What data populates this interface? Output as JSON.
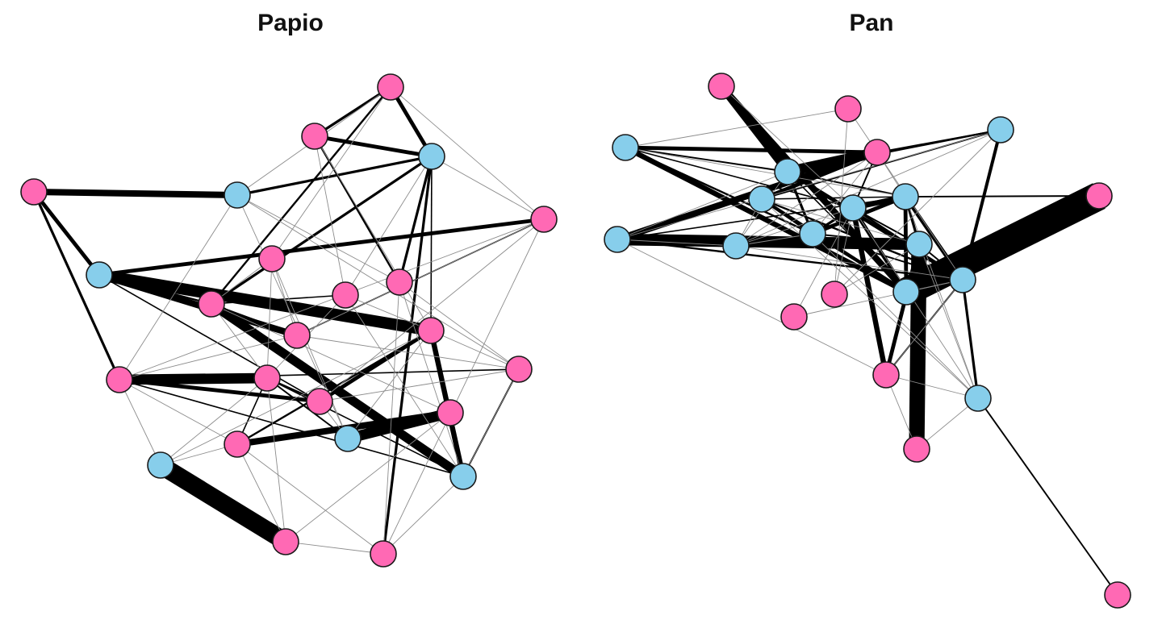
{
  "colors": {
    "female": "#ff69b4",
    "male": "#87ceeb",
    "edge": "#000000",
    "node_stroke": "#1a1a1a",
    "weak_edge": "#8c8c8c"
  },
  "networks": [
    {
      "title": "Papio",
      "nodes": [
        {
          "id": "a",
          "sex": "female"
        },
        {
          "id": "b",
          "sex": "female"
        },
        {
          "id": "c",
          "sex": "male"
        },
        {
          "id": "d",
          "sex": "female"
        },
        {
          "id": "e",
          "sex": "male"
        },
        {
          "id": "f",
          "sex": "female"
        },
        {
          "id": "g",
          "sex": "male"
        },
        {
          "id": "h",
          "sex": "female"
        },
        {
          "id": "i",
          "sex": "female"
        },
        {
          "id": "j",
          "sex": "female"
        },
        {
          "id": "k",
          "sex": "female"
        },
        {
          "id": "l",
          "sex": "female"
        },
        {
          "id": "m",
          "sex": "female"
        },
        {
          "id": "n",
          "sex": "female"
        },
        {
          "id": "o",
          "sex": "female"
        },
        {
          "id": "p",
          "sex": "female"
        },
        {
          "id": "q",
          "sex": "female"
        },
        {
          "id": "r",
          "sex": "female"
        },
        {
          "id": "s",
          "sex": "female"
        },
        {
          "id": "t",
          "sex": "male"
        },
        {
          "id": "u",
          "sex": "male"
        },
        {
          "id": "v",
          "sex": "male"
        },
        {
          "id": "w",
          "sex": "female"
        },
        {
          "id": "x",
          "sex": "female"
        }
      ],
      "edges": [
        [
          "v",
          "w",
          14
        ],
        [
          "g",
          "m",
          9
        ],
        [
          "t",
          "r",
          8
        ],
        [
          "o",
          "n",
          8
        ],
        [
          "k",
          "u",
          7
        ],
        [
          "d",
          "e",
          5
        ],
        [
          "g",
          "l",
          5
        ],
        [
          "r",
          "s",
          5
        ],
        [
          "m",
          "u",
          4
        ],
        [
          "b",
          "c",
          3
        ],
        [
          "g",
          "f",
          3
        ],
        [
          "n",
          "q",
          3
        ],
        [
          "a",
          "c",
          3
        ],
        [
          "m",
          "q",
          3
        ],
        [
          "d",
          "g",
          3
        ],
        [
          "c",
          "k",
          2
        ],
        [
          "a",
          "b",
          2
        ],
        [
          "c",
          "e",
          2
        ],
        [
          "c",
          "i",
          2
        ],
        [
          "d",
          "n",
          2
        ],
        [
          "c",
          "x",
          2
        ],
        [
          "b",
          "i",
          1.5
        ],
        [
          "a",
          "k",
          1.5
        ],
        [
          "o",
          "q",
          1.5
        ],
        [
          "g",
          "k",
          1.5
        ],
        [
          "m",
          "s",
          1.5
        ],
        [
          "m",
          "r",
          1.2
        ],
        [
          "m",
          "u",
          1.2
        ],
        [
          "o",
          "t",
          1.2
        ],
        [
          "u",
          "p",
          1.2
        ],
        [
          "c",
          "m",
          1
        ],
        [
          "j",
          "k",
          1
        ],
        [
          "l",
          "k",
          1.2
        ],
        [
          "n",
          "p",
          1
        ],
        [
          "o",
          "s",
          1
        ],
        [
          "o",
          "u",
          1
        ],
        [
          "g",
          "q",
          1
        ],
        [
          "e",
          "c",
          1.2
        ],
        [
          "f",
          "l",
          1
        ],
        [
          "n",
          "u",
          1
        ],
        [
          "a",
          "e",
          0.6
        ],
        [
          "a",
          "f",
          0.6
        ],
        [
          "a",
          "h",
          0.6
        ],
        [
          "b",
          "j",
          0.6
        ],
        [
          "b",
          "m",
          0.6
        ],
        [
          "c",
          "j",
          0.6
        ],
        [
          "c",
          "f",
          0.6
        ],
        [
          "e",
          "n",
          0.6
        ],
        [
          "e",
          "i",
          0.6
        ],
        [
          "e",
          "t",
          0.6
        ],
        [
          "f",
          "x",
          0.6
        ],
        [
          "f",
          "n",
          0.6
        ],
        [
          "f",
          "l",
          0.6
        ],
        [
          "h",
          "o",
          0.6
        ],
        [
          "h",
          "k",
          0.6
        ],
        [
          "h",
          "l",
          0.6
        ],
        [
          "i",
          "p",
          0.6
        ],
        [
          "i",
          "x",
          0.6
        ],
        [
          "j",
          "m",
          0.6
        ],
        [
          "j",
          "u",
          0.6
        ],
        [
          "k",
          "r",
          0.6
        ],
        [
          "k",
          "o",
          0.6
        ],
        [
          "l",
          "n",
          0.6
        ],
        [
          "l",
          "p",
          0.6
        ],
        [
          "m",
          "p",
          0.6
        ],
        [
          "m",
          "v",
          0.6
        ],
        [
          "n",
          "s",
          0.6
        ],
        [
          "n",
          "v",
          0.6
        ],
        [
          "o",
          "v",
          0.6
        ],
        [
          "o",
          "w",
          0.6
        ],
        [
          "p",
          "u",
          0.6
        ],
        [
          "q",
          "p",
          0.6
        ],
        [
          "r",
          "w",
          0.6
        ],
        [
          "s",
          "w",
          0.6
        ],
        [
          "s",
          "x",
          0.6
        ],
        [
          "s",
          "v",
          0.6
        ],
        [
          "t",
          "m",
          0.6
        ],
        [
          "t",
          "h",
          0.6
        ],
        [
          "u",
          "x",
          0.6
        ],
        [
          "w",
          "x",
          0.6
        ],
        [
          "e",
          "p",
          0.6
        ],
        [
          "f",
          "q",
          0.6
        ],
        [
          "j",
          "o",
          0.6
        ],
        [
          "i",
          "u",
          0.6
        ],
        [
          "q",
          "t",
          0.6
        ]
      ]
    },
    {
      "title": "Pan",
      "nodes": [
        {
          "id": "A",
          "sex": "female"
        },
        {
          "id": "B",
          "sex": "male"
        },
        {
          "id": "C",
          "sex": "female"
        },
        {
          "id": "D",
          "sex": "male"
        },
        {
          "id": "E",
          "sex": "female"
        },
        {
          "id": "F",
          "sex": "male"
        },
        {
          "id": "G",
          "sex": "male"
        },
        {
          "id": "H",
          "sex": "male"
        },
        {
          "id": "I",
          "sex": "male"
        },
        {
          "id": "J",
          "sex": "female"
        },
        {
          "id": "K",
          "sex": "male"
        },
        {
          "id": "L",
          "sex": "male"
        },
        {
          "id": "M",
          "sex": "male"
        },
        {
          "id": "N",
          "sex": "male"
        },
        {
          "id": "O",
          "sex": "male"
        },
        {
          "id": "P",
          "sex": "male"
        },
        {
          "id": "Q",
          "sex": "female"
        },
        {
          "id": "R",
          "sex": "female"
        },
        {
          "id": "S",
          "sex": "female"
        },
        {
          "id": "T",
          "sex": "male"
        },
        {
          "id": "U",
          "sex": "female"
        },
        {
          "id": "V",
          "sex": "female"
        }
      ],
      "edges": [
        [
          "O",
          "J",
          22
        ],
        [
          "M",
          "U",
          12
        ],
        [
          "K",
          "M",
          9
        ],
        [
          "F",
          "E",
          8
        ],
        [
          "A",
          "F",
          6
        ],
        [
          "K",
          "E",
          5
        ],
        [
          "A",
          "O",
          5
        ],
        [
          "B",
          "O",
          4
        ],
        [
          "I",
          "H",
          4
        ],
        [
          "I",
          "S",
          4
        ],
        [
          "B",
          "E",
          3
        ],
        [
          "F",
          "P",
          3
        ],
        [
          "H",
          "O",
          3
        ],
        [
          "L",
          "H",
          3
        ],
        [
          "G",
          "E",
          3
        ],
        [
          "M",
          "S",
          3
        ],
        [
          "I",
          "O",
          3
        ],
        [
          "H",
          "P",
          3
        ],
        [
          "D",
          "P",
          2.5
        ],
        [
          "G",
          "O",
          2.5
        ],
        [
          "G",
          "L",
          2
        ],
        [
          "F",
          "L",
          2
        ],
        [
          "L",
          "I",
          2
        ],
        [
          "H",
          "M",
          2
        ],
        [
          "P",
          "T",
          2
        ],
        [
          "L",
          "O",
          1.5
        ],
        [
          "D",
          "F",
          1.5
        ],
        [
          "B",
          "L",
          1.5
        ],
        [
          "I",
          "P",
          1.5
        ],
        [
          "G",
          "P",
          1.5
        ],
        [
          "K",
          "P",
          1.5
        ],
        [
          "D",
          "G",
          1.2
        ],
        [
          "M",
          "P",
          1.2
        ],
        [
          "I",
          "M",
          1.2
        ],
        [
          "F",
          "H",
          1.2
        ],
        [
          "L",
          "P",
          1.2
        ],
        [
          "L",
          "M",
          1.2
        ],
        [
          "P",
          "S",
          1.2
        ],
        [
          "B",
          "F",
          1.2
        ],
        [
          "H",
          "J",
          1.2
        ],
        [
          "E",
          "I",
          1.2
        ],
        [
          "T",
          "V",
          1.2
        ],
        [
          "G",
          "H",
          1
        ],
        [
          "H",
          "K",
          1
        ],
        [
          "F",
          "O",
          1
        ],
        [
          "D",
          "E",
          1
        ],
        [
          "B",
          "I",
          1
        ],
        [
          "O",
          "M",
          1
        ],
        [
          "B",
          "C",
          0.6
        ],
        [
          "D",
          "K",
          0.6
        ],
        [
          "D",
          "N",
          0.6
        ],
        [
          "D",
          "Q",
          0.6
        ],
        [
          "E",
          "N",
          0.6
        ],
        [
          "E",
          "L",
          0.6
        ],
        [
          "C",
          "P",
          0.6
        ],
        [
          "C",
          "Q",
          0.6
        ],
        [
          "F",
          "N",
          0.6
        ],
        [
          "G",
          "N",
          0.6
        ],
        [
          "G",
          "M",
          0.6
        ],
        [
          "G",
          "T",
          0.6
        ],
        [
          "I",
          "R",
          0.6
        ],
        [
          "I",
          "T",
          0.6
        ],
        [
          "K",
          "S",
          0.6
        ],
        [
          "K",
          "N",
          0.6
        ],
        [
          "L",
          "N",
          0.6
        ],
        [
          "L",
          "T",
          0.6
        ],
        [
          "M",
          "Q",
          0.6
        ],
        [
          "M",
          "T",
          0.6
        ],
        [
          "N",
          "P",
          0.6
        ],
        [
          "N",
          "I",
          0.6
        ],
        [
          "P",
          "R",
          0.6
        ],
        [
          "P",
          "S",
          0.6
        ],
        [
          "Q",
          "I",
          0.6
        ],
        [
          "S",
          "T",
          0.6
        ],
        [
          "S",
          "U",
          0.6
        ],
        [
          "T",
          "U",
          0.6
        ],
        [
          "H",
          "T",
          0.6
        ],
        [
          "F",
          "K",
          0.6
        ],
        [
          "O",
          "P",
          0.6
        ],
        [
          "B",
          "H",
          0.6
        ],
        [
          "E",
          "H",
          0.6
        ],
        [
          "A",
          "I",
          0.6
        ]
      ]
    }
  ]
}
